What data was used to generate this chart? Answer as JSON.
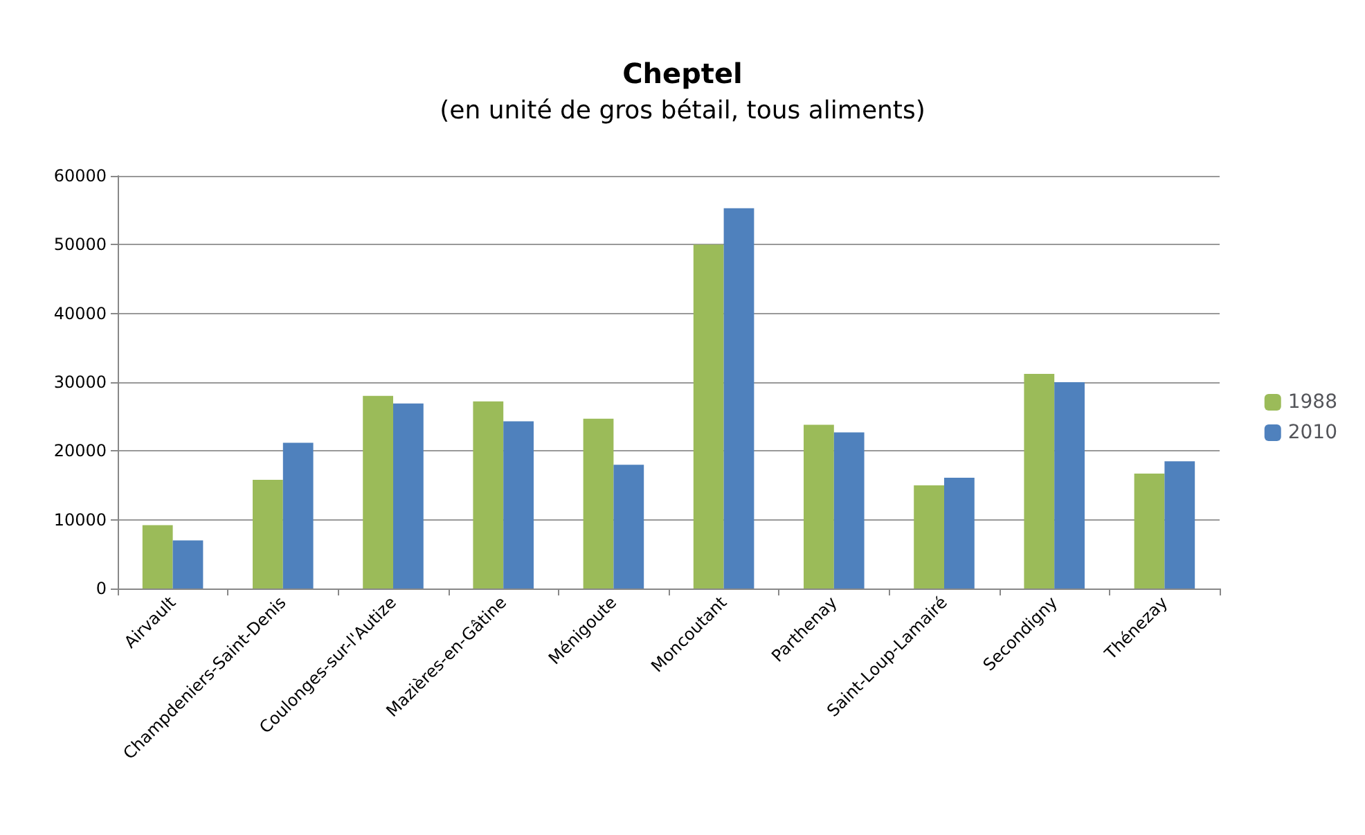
{
  "chart_data": {
    "type": "bar",
    "title": "Cheptel",
    "subtitle": "(en unité de gros bétail, tous aliments)",
    "categories": [
      "Airvault",
      "Champdeniers-Saint-Denis",
      "Coulonges-sur-l'Autize",
      "Mazières-en-Gâtine",
      "Ménigoute",
      "Moncoutant",
      "Parthenay",
      "Saint-Loup-Lamairé",
      "Secondigny",
      "Thénezay"
    ],
    "series": [
      {
        "name": "1988",
        "color": "#9bbb59",
        "values": [
          9200,
          15800,
          28000,
          27200,
          24700,
          50000,
          23800,
          15000,
          31200,
          16700
        ]
      },
      {
        "name": "2010",
        "color": "#4f81bd",
        "values": [
          7000,
          21200,
          26900,
          24300,
          18000,
          55300,
          22700,
          16100,
          30000,
          18500
        ]
      }
    ],
    "ylim": [
      0,
      60000
    ],
    "yticks": [
      0,
      10000,
      20000,
      30000,
      40000,
      50000,
      60000
    ],
    "grid": "y",
    "legend": "right"
  }
}
